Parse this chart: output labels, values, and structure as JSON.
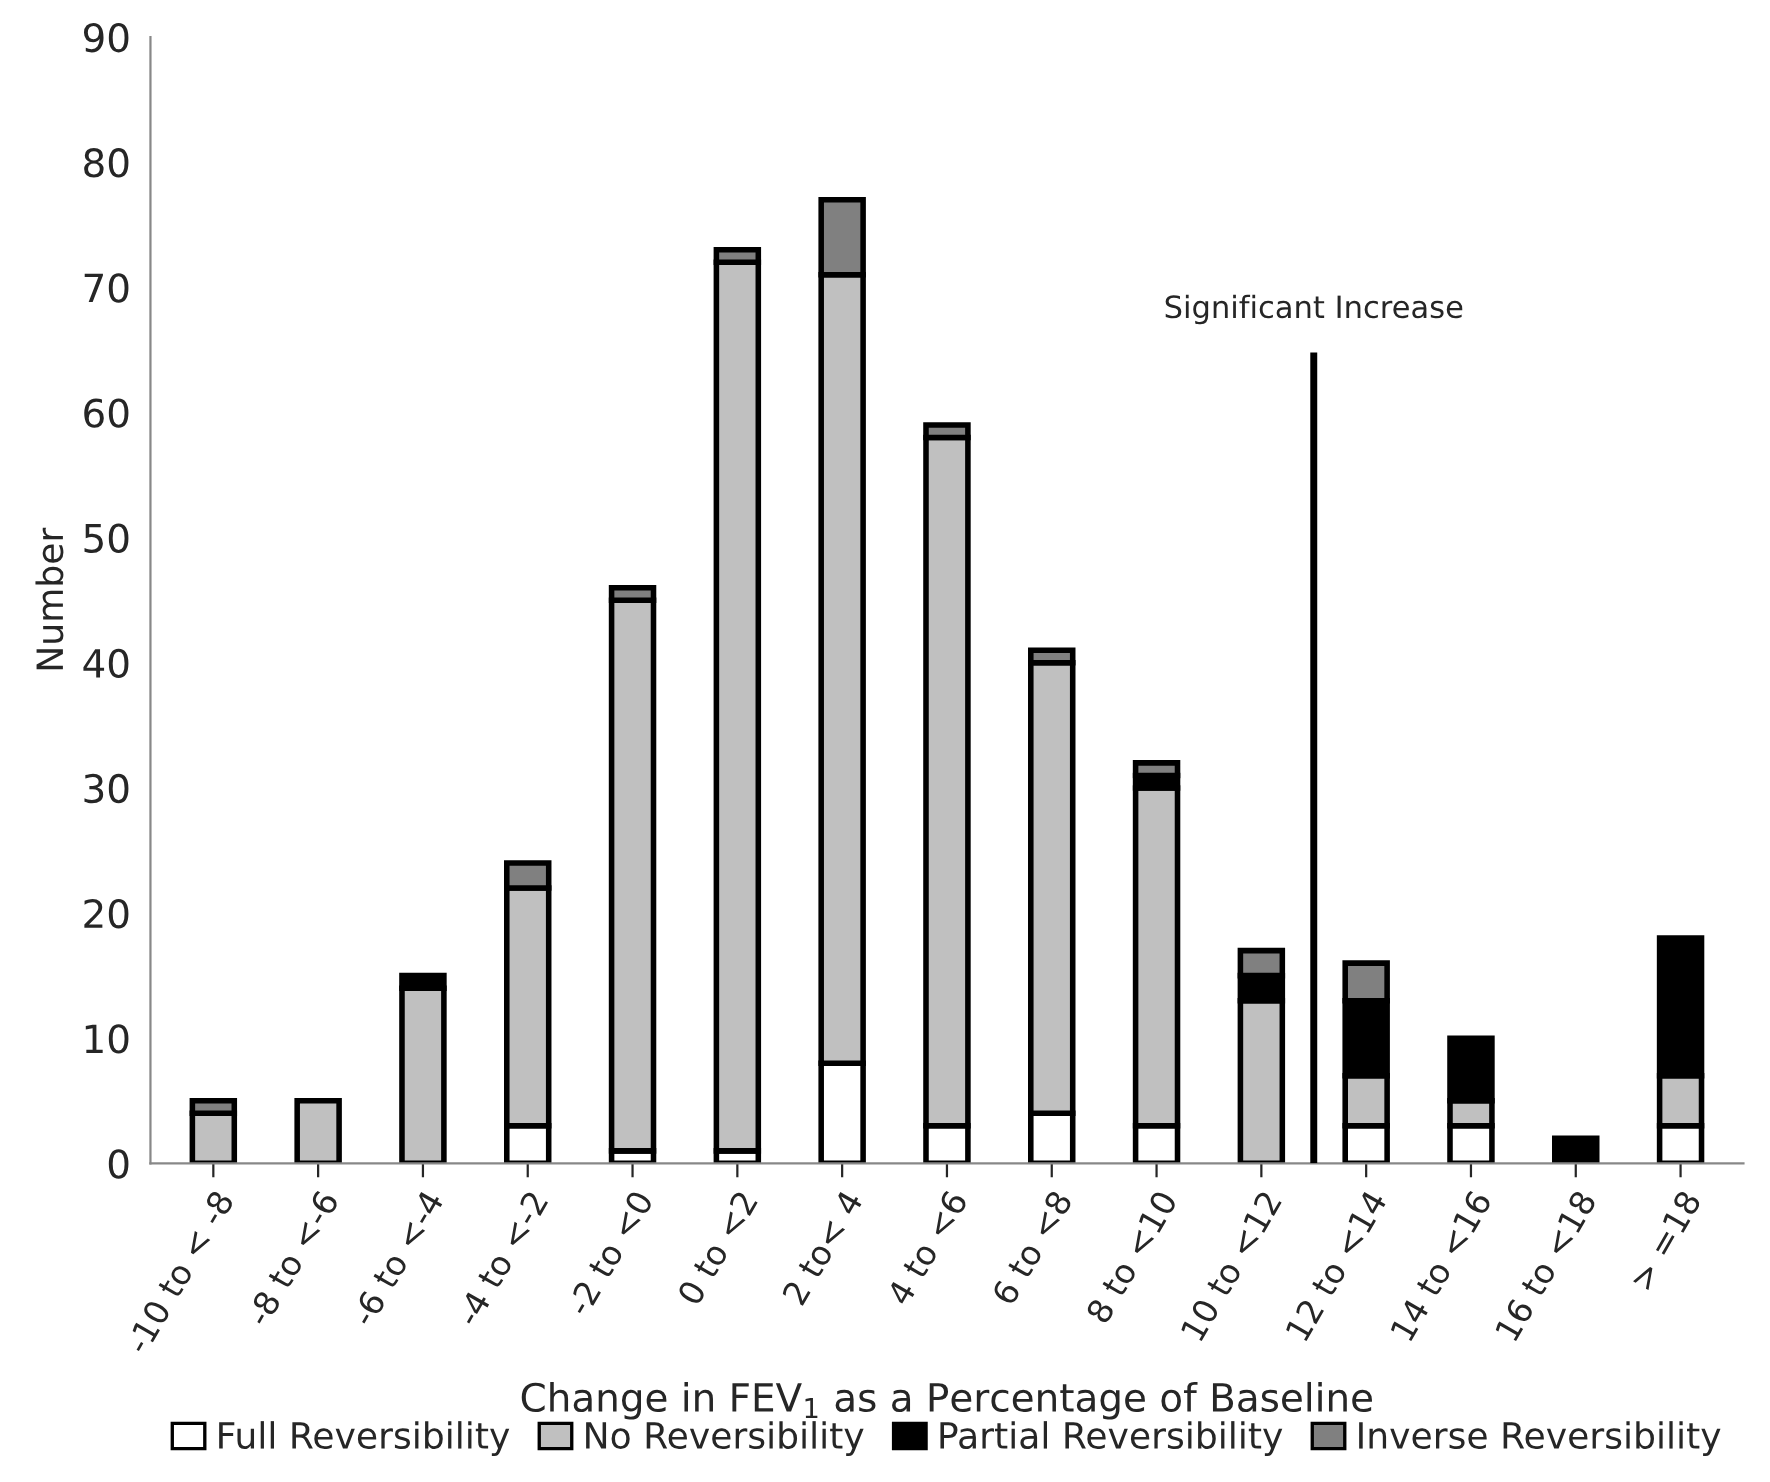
{
  "chart_data": {
    "type": "bar",
    "stacked": true,
    "xlabel": "Change in FEV$_{1}$ as a Percentage of Baseline",
    "ylabel": "Number",
    "categories": [
      "-10 to < -8",
      "-8 to <-6",
      "-6 to <-4",
      "-4 to <-2",
      "-2 to <0",
      "0 to <2",
      "2 to< 4",
      "4 to <6",
      "6 to <8",
      "8 to <10",
      "10 to <12",
      "12 to <14",
      "14 to <16",
      "16 to <18",
      "> =18"
    ],
    "series": [
      {
        "name": "Full Reversibility",
        "color": "#ffffff",
        "values": [
          0,
          0,
          0,
          3,
          1,
          1,
          8,
          3,
          4,
          3,
          0,
          3,
          3,
          0,
          3
        ]
      },
      {
        "name": "No Reversibility",
        "color": "#c0c0c0",
        "values": [
          4,
          5,
          14,
          19,
          44,
          71,
          63,
          55,
          36,
          27,
          13,
          4,
          2,
          0,
          4
        ]
      },
      {
        "name": "Partial Reversibility",
        "color": "#000000",
        "values": [
          0,
          0,
          1,
          0,
          0,
          0,
          0,
          0,
          0,
          1,
          2,
          6,
          5,
          2,
          11
        ]
      },
      {
        "name": "Inverse Reversibility",
        "color": "#808080",
        "values": [
          1,
          0,
          0,
          2,
          1,
          1,
          6,
          1,
          1,
          1,
          2,
          3,
          0,
          0,
          0
        ]
      }
    ],
    "ylim": [
      0,
      90
    ],
    "yticks": [
      0,
      10,
      20,
      30,
      40,
      50,
      60,
      70,
      80,
      90
    ],
    "grid": false,
    "legend": "bottom",
    "annotations": [
      "Significant Increase"
    ]
  }
}
